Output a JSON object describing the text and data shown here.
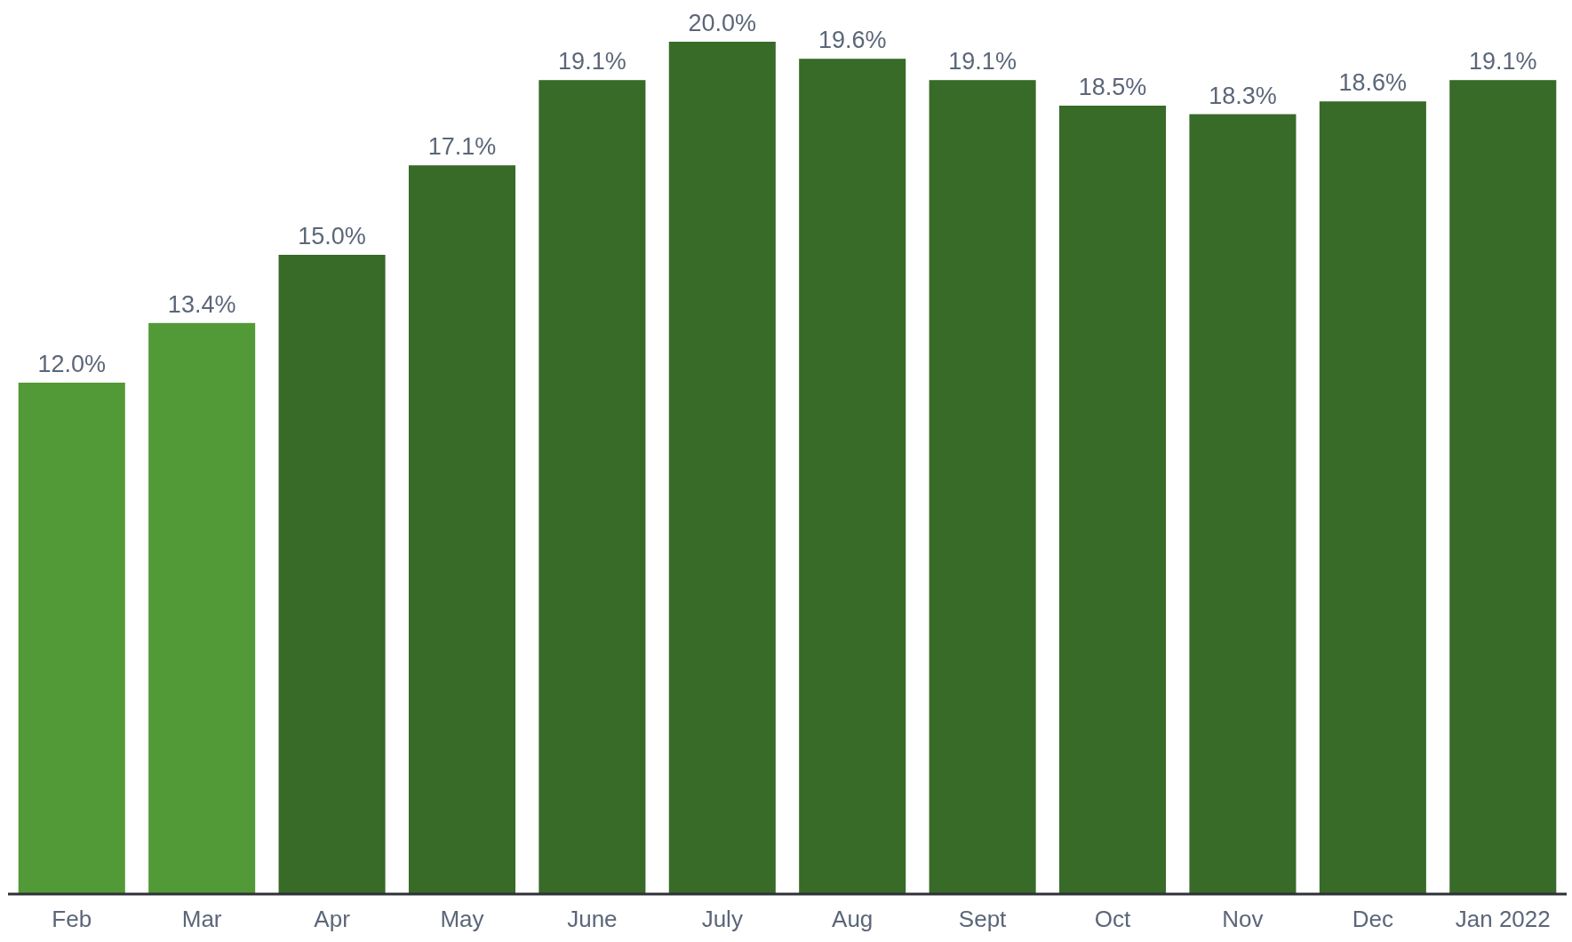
{
  "chart_data": {
    "type": "bar",
    "categories": [
      "Feb",
      "Mar",
      "Apr",
      "May",
      "June",
      "July",
      "Aug",
      "Sept",
      "Oct",
      "Nov",
      "Dec",
      "Jan 2022"
    ],
    "values": [
      12.0,
      13.4,
      15.0,
      17.1,
      19.1,
      20.0,
      19.6,
      19.1,
      18.5,
      18.3,
      18.6,
      19.1
    ],
    "colors": [
      "#529a37",
      "#529a37",
      "#386a28",
      "#386a28",
      "#386a28",
      "#386a28",
      "#386a28",
      "#386a28",
      "#386a28",
      "#386a28",
      "#386a28",
      "#386a28"
    ],
    "value_labels": [
      "12.0%",
      "13.4%",
      "15.0%",
      "17.1%",
      "19.1%",
      "20.0%",
      "19.6%",
      "19.1%",
      "18.5%",
      "18.3%",
      "18.6%",
      "19.1%"
    ]
  }
}
